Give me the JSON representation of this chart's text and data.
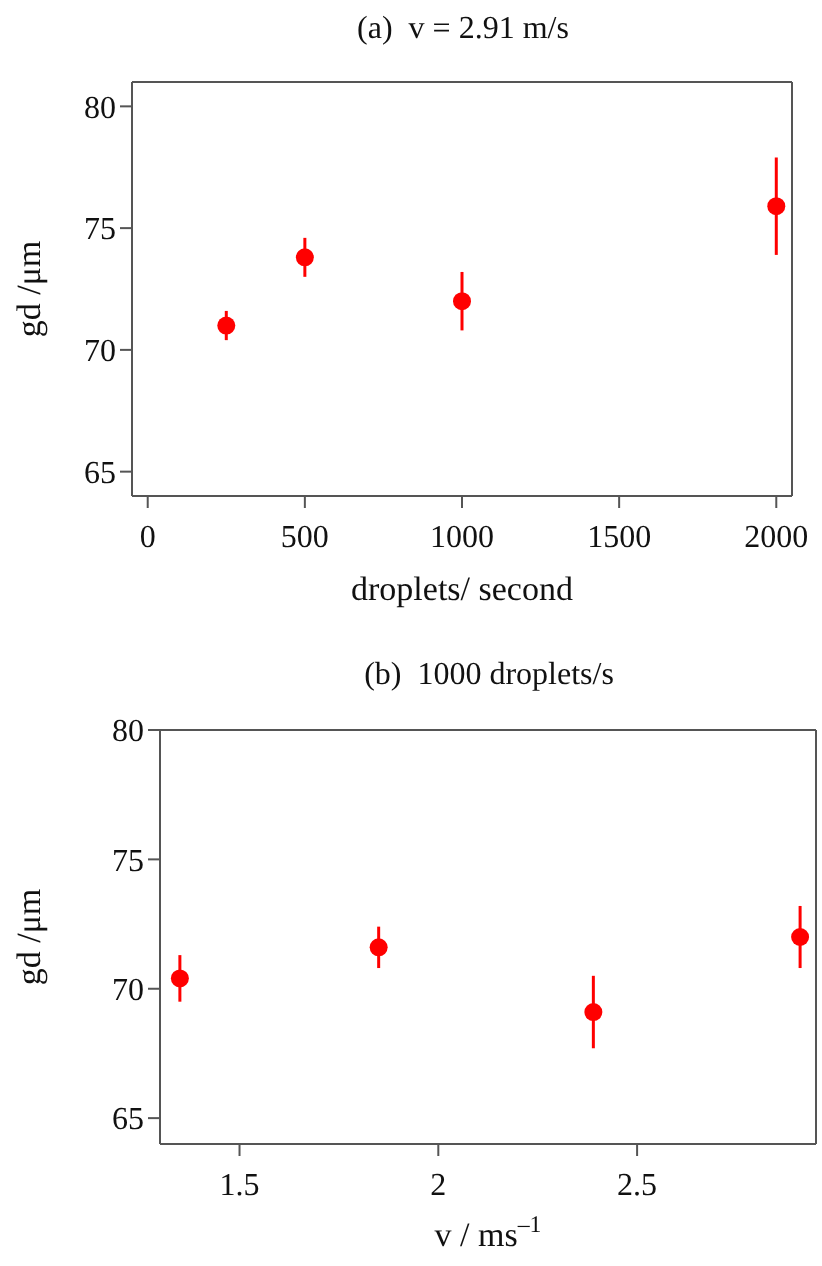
{
  "chart_data": [
    {
      "type": "scatter",
      "title": "(a)  v = 2.91 m/s",
      "xlabel": "droplets/ second",
      "ylabel": "gd /μm",
      "x": [
        250,
        500,
        1000,
        2000
      ],
      "values": [
        71.0,
        73.8,
        72.0,
        75.9
      ],
      "errors": [
        0.6,
        0.8,
        1.2,
        2.0
      ],
      "color": "#ff0000",
      "marker": "circle",
      "xlim": [
        -50,
        2050
      ],
      "xticks": [
        0,
        500,
        1000,
        1500,
        2000
      ],
      "ylim": [
        64,
        81
      ],
      "yticks": [
        65,
        70,
        75,
        80
      ]
    },
    {
      "type": "scatter",
      "title": "(b)  1000 droplets/s",
      "xlabel": "v / ms$^{–1}$",
      "ylabel": "gd /μm",
      "x": [
        1.35,
        1.85,
        2.39,
        2.91
      ],
      "values": [
        70.4,
        71.6,
        69.1,
        72.0
      ],
      "errors": [
        0.9,
        0.8,
        1.4,
        1.2
      ],
      "color": "#ff0000",
      "marker": "circle",
      "xlim": [
        1.3,
        2.95
      ],
      "xticks": [
        1.5,
        2,
        2.5
      ],
      "ylim": [
        64,
        80
      ],
      "yticks": [
        65,
        70,
        75,
        80
      ]
    }
  ]
}
